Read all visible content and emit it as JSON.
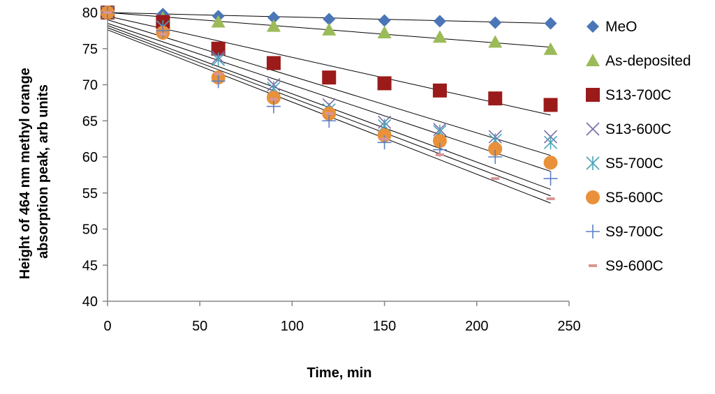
{
  "chart_data": {
    "type": "scatter",
    "title": "",
    "xlabel": "Time, min",
    "ylabel_lines": [
      "Height of 464 nm methyl orange",
      "absorption peak, arb units"
    ],
    "xlim": [
      0,
      250
    ],
    "ylim": [
      40,
      80
    ],
    "xticks": [
      0,
      50,
      100,
      150,
      200,
      250
    ],
    "yticks": [
      40,
      45,
      50,
      55,
      60,
      65,
      70,
      75,
      80
    ],
    "grid": false,
    "legend_position": "right",
    "x": [
      0,
      30,
      60,
      90,
      120,
      150,
      180,
      210,
      240
    ],
    "series": [
      {
        "name": "MeO",
        "marker": "diamond",
        "color": "#4a76b8",
        "values": [
          80,
          79.8,
          79.5,
          79.3,
          79.1,
          78.9,
          78.8,
          78.6,
          78.5
        ],
        "trend": [
          80.0,
          78.5
        ]
      },
      {
        "name": "As-deposited",
        "marker": "triangle",
        "color": "#9bbb59",
        "values": [
          80,
          79.2,
          78.7,
          78.1,
          77.6,
          77.2,
          76.6,
          75.9,
          74.9
        ],
        "trend": [
          80.0,
          75.2
        ]
      },
      {
        "name": "S13-700C",
        "marker": "square",
        "color": "#9b1b1b",
        "values": [
          80,
          78.7,
          75.0,
          73.0,
          71.0,
          70.2,
          69.2,
          68.1,
          67.2
        ],
        "trend": [
          79.5,
          65.8
        ]
      },
      {
        "name": "S13-600C",
        "marker": "x",
        "color": "#7b6aa6",
        "values": [
          80,
          78.0,
          73.8,
          70.0,
          67.2,
          64.8,
          63.8,
          62.8,
          62.8
        ],
        "trend": [
          79.0,
          60.2
        ]
      },
      {
        "name": "S5-700C",
        "marker": "star",
        "color": "#4aa3b8",
        "values": [
          80,
          78.0,
          73.5,
          69.5,
          66.5,
          64.3,
          63.5,
          62.3,
          62.0
        ],
        "trend": [
          78.5,
          58.0
        ]
      },
      {
        "name": "S5-600C",
        "marker": "circle",
        "color": "#e8913a",
        "values": [
          80,
          77.2,
          71.0,
          68.2,
          66.0,
          63.0,
          62.2,
          61.1,
          59.2
        ],
        "trend": [
          78.2,
          55.5
        ]
      },
      {
        "name": "S9-700C",
        "marker": "plus",
        "color": "#5b7fc4",
        "values": [
          80,
          77.5,
          70.5,
          67.0,
          65.0,
          62.0,
          61.0,
          60.0,
          57.0
        ],
        "trend": [
          77.9,
          54.6
        ]
      },
      {
        "name": "S9-600C",
        "marker": "dash",
        "color": "#d99694",
        "values": [
          80,
          77.0,
          71.5,
          68.0,
          66.0,
          62.5,
          60.3,
          57.0,
          54.2
        ],
        "trend": [
          77.6,
          53.6
        ]
      }
    ]
  }
}
